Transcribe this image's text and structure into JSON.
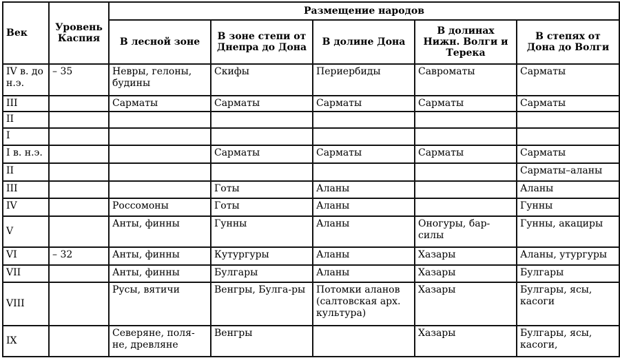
{
  "header": {
    "century": "Век",
    "caspian_level": "Уровень Каспия",
    "placement": "Размещение народов",
    "zones": [
      "В лесной зоне",
      "В зоне степи от Днепра до Дона",
      "В долине Дона",
      "В долинах Нижн. Волги и Терека",
      "В степях от Дона до Волги"
    ]
  },
  "rows": [
    {
      "century": "IV в. до н.э.",
      "level": "– 35",
      "cells": [
        "Невры, гелоны, будины",
        "Скифы",
        "Периербиды",
        "Савроматы",
        "Сарматы"
      ]
    },
    {
      "century": "III",
      "level": "",
      "cells": [
        "Сарматы",
        "Сарматы",
        "Сарматы",
        "Сарматы",
        "Сарматы"
      ]
    },
    {
      "century": "II",
      "level": "",
      "cells": [
        "",
        "",
        "",
        "",
        ""
      ]
    },
    {
      "century": "I",
      "level": "",
      "cells": [
        "",
        "",
        "",
        "",
        ""
      ]
    },
    {
      "century": "I в. н.э.",
      "level": "",
      "cells": [
        "",
        "Сарматы",
        "Сарматы",
        "Сарматы",
        "Сарматы"
      ]
    },
    {
      "century": "II",
      "level": "",
      "cells": [
        "",
        "",
        "",
        "",
        "Сарматы–аланы"
      ]
    },
    {
      "century": "III",
      "level": "",
      "cells": [
        "",
        "Готы",
        "Аланы",
        "",
        "Аланы"
      ]
    },
    {
      "century": "IV",
      "level": "",
      "cells": [
        "Россомоны",
        "Готы",
        "Аланы",
        "",
        "Гунны"
      ]
    },
    {
      "century": "V",
      "level": "",
      "cells": [
        "Анты, финны",
        "Гунны",
        "Аланы",
        "Оногуры, бар-силы",
        "Гунны, акациры"
      ]
    },
    {
      "century": "VI",
      "level": "– 32",
      "cells": [
        "Анты, финны",
        "Кутургуры",
        "Аланы",
        "Хазары",
        "Аланы, утургуры"
      ]
    },
    {
      "century": "VII",
      "level": "",
      "cells": [
        "Анты, финны",
        "Булгары",
        "Аланы",
        "Хазары",
        "Булгары"
      ]
    },
    {
      "century": "VIII",
      "level": "",
      "cells": [
        "Русы, вятичи",
        "Венгры, Булга-ры",
        "Потомки аланов (салтовская арх. культура)",
        "Хазары",
        "Булгары, ясы, касоги"
      ]
    },
    {
      "century": "IX",
      "level": "",
      "cells": [
        "Северяне, поля-не, древляне",
        "Венгры",
        "",
        "Хазары",
        "Булгары, ясы, касоги,"
      ]
    }
  ]
}
